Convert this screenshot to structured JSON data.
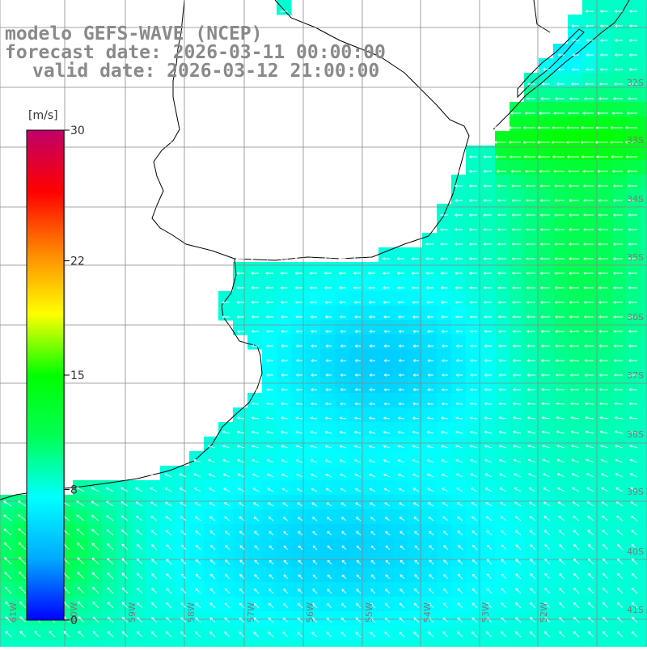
{
  "header": {
    "model": "modelo GEFS-WAVE (NCEP)",
    "forecast": "forecast date: 2026-03-11 00:00:00",
    "valid": "valid date: 2026-03-12 21:00:00"
  },
  "legend": {
    "unit": "[m/s]",
    "ticks": [
      {
        "label": "30",
        "value": 30
      },
      {
        "label": "22",
        "value": 22
      },
      {
        "label": "15",
        "value": 15
      },
      {
        "label": "8",
        "value": 8
      },
      {
        "label": "0",
        "value": 0
      }
    ],
    "range": [
      0,
      30
    ],
    "colors": [
      "#0000ff",
      "#00aaff",
      "#00ffff",
      "#00ff55",
      "#00ff00",
      "#ffff00",
      "#ff8800",
      "#ff0000",
      "#c0006a"
    ]
  },
  "map": {
    "lat_labels": [
      "32S",
      "33S",
      "34S",
      "35S",
      "36S",
      "37S",
      "38S",
      "39S",
      "40S",
      "41S"
    ],
    "lon_labels": [
      "61W",
      "60W",
      "59W",
      "58W",
      "57W",
      "56W",
      "55W",
      "54W",
      "53W",
      "52W"
    ],
    "wind_field_note": "",
    "field": {
      "label_color": "#7a7a7a",
      "grid_color": "#888888",
      "coast_color": "#000000",
      "arrow_color": "#ffffff"
    }
  }
}
